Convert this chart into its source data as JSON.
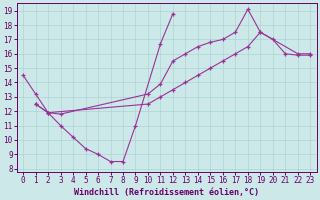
{
  "xlabel": "Windchill (Refroidissement éolien,°C)",
  "xlim": [
    -0.5,
    23.5
  ],
  "ylim": [
    7.8,
    19.5
  ],
  "yticks": [
    8,
    9,
    10,
    11,
    12,
    13,
    14,
    15,
    16,
    17,
    18,
    19
  ],
  "xticks": [
    0,
    1,
    2,
    3,
    4,
    5,
    6,
    7,
    8,
    9,
    10,
    11,
    12,
    13,
    14,
    15,
    16,
    17,
    18,
    19,
    20,
    21,
    22,
    23
  ],
  "bg_color": "#cce8e8",
  "line_color": "#993399",
  "line1_x": [
    0,
    1,
    2,
    3,
    4,
    5,
    6,
    7,
    8,
    9,
    11,
    12
  ],
  "line1_y": [
    14.5,
    13.2,
    11.9,
    11.0,
    10.2,
    9.4,
    9.0,
    8.5,
    8.5,
    11.0,
    16.7,
    18.8
  ],
  "line2_x": [
    1,
    2,
    3,
    10,
    11,
    12,
    13,
    14,
    15,
    16,
    17,
    18,
    19,
    20,
    21,
    22,
    23
  ],
  "line2_y": [
    12.5,
    11.9,
    11.8,
    13.2,
    13.9,
    15.5,
    16.0,
    16.5,
    16.8,
    17.0,
    17.5,
    19.1,
    17.5,
    17.0,
    16.0,
    15.9,
    15.9
  ],
  "line3_x": [
    1,
    2,
    10,
    11,
    12,
    13,
    14,
    15,
    16,
    17,
    18,
    19,
    22,
    23
  ],
  "line3_y": [
    12.5,
    11.9,
    12.5,
    13.0,
    13.5,
    14.0,
    14.5,
    15.0,
    15.5,
    16.0,
    16.5,
    17.5,
    16.0,
    16.0
  ],
  "tick_fontsize": 5.5,
  "label_fontsize": 6.0
}
